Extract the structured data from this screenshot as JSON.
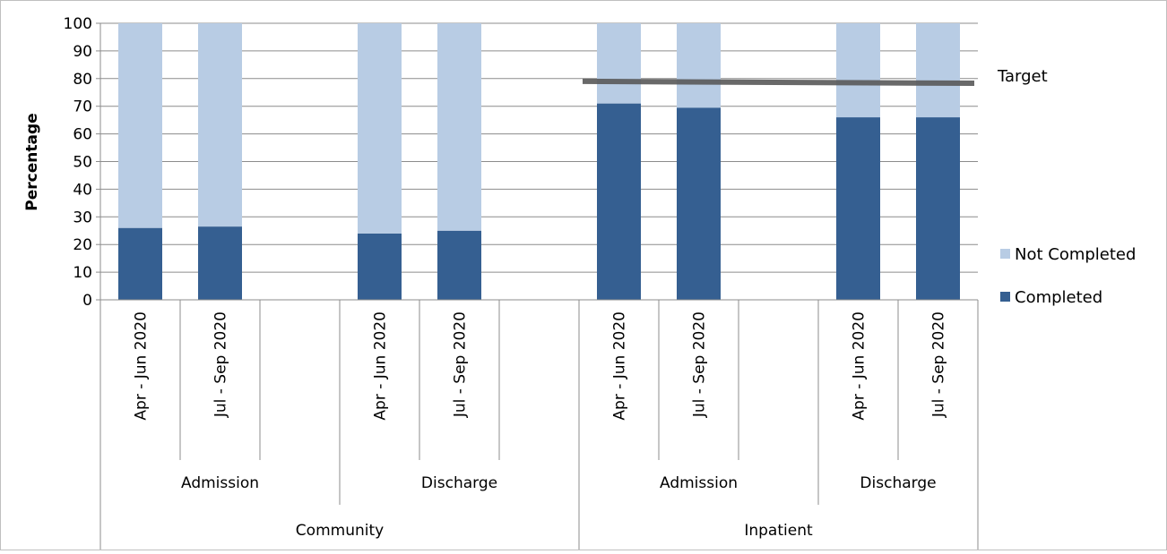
{
  "chart_data": {
    "type": "bar",
    "stacked": true,
    "ylabel": "Percentage",
    "ylim": [
      0,
      100
    ],
    "yticks": [
      0,
      10,
      20,
      30,
      40,
      50,
      60,
      70,
      80,
      90,
      100
    ],
    "grid": true,
    "legend_position": "right",
    "categories": [
      "Apr - Jun 2020",
      "Jul - Sep 2020",
      "",
      "Apr - Jun 2020",
      "Jul - Sep 2020",
      "",
      "Apr - Jun 2020",
      "Jul - Sep 2020",
      "",
      "Apr - Jun 2020",
      "Jul - Sep 2020"
    ],
    "groups": [
      {
        "label": "Admission",
        "span": 3
      },
      {
        "label": "Discharge",
        "span": 3
      },
      {
        "label": "Admission",
        "span": 3
      },
      {
        "label": "Discharge",
        "span": 2
      }
    ],
    "supergroups": [
      {
        "label": "Community",
        "span": 6
      },
      {
        "label": "Inpatient",
        "span": 5
      }
    ],
    "series": [
      {
        "name": "Completed",
        "color": "#355F91",
        "values": [
          26,
          26.5,
          null,
          24,
          25,
          null,
          71,
          69.5,
          null,
          66,
          66
        ]
      },
      {
        "name": "Not Completed",
        "color": "#B8CCE4",
        "values": [
          74,
          73.5,
          null,
          76,
          75,
          null,
          29,
          30.5,
          null,
          34,
          34
        ]
      }
    ],
    "target": {
      "label": "Target",
      "color": "#595959",
      "x_from": 6,
      "x_to": 10,
      "y_start": 79,
      "y_end": 78.3
    }
  }
}
